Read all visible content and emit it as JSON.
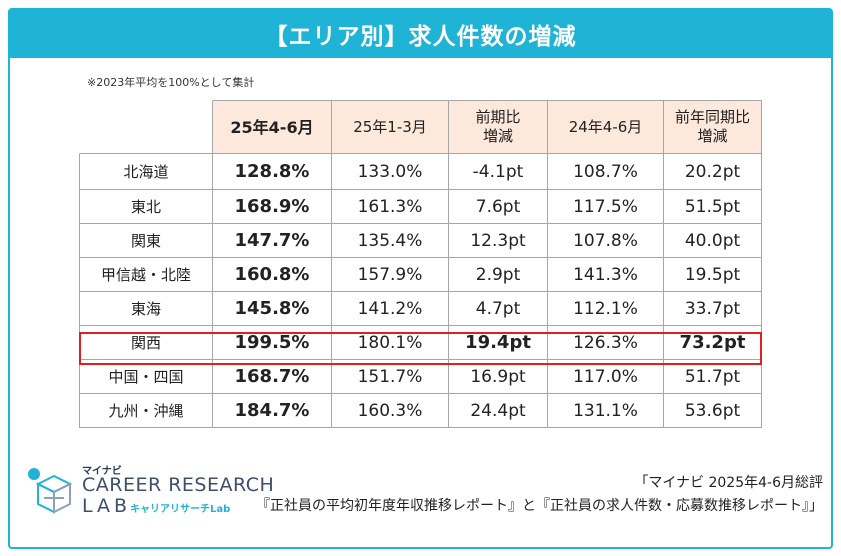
{
  "title": "【エリア別】求人件数の増減",
  "note": "※2023年平均を100%として集計",
  "chart_data": {
    "type": "table",
    "columns": [
      "25年4-6月",
      "25年1-3月",
      "前期比\n増減",
      "24年4-6月",
      "前年同期比\n増減"
    ],
    "rows": [
      {
        "region": "北海道",
        "cells": [
          "128.8%",
          "133.0%",
          "-4.1pt",
          "108.7%",
          "20.2pt"
        ]
      },
      {
        "region": "東北",
        "cells": [
          "168.9%",
          "161.3%",
          "7.6pt",
          "117.5%",
          "51.5pt"
        ]
      },
      {
        "region": "関東",
        "cells": [
          "147.7%",
          "135.4%",
          "12.3pt",
          "107.8%",
          "40.0pt"
        ]
      },
      {
        "region": "甲信越・北陸",
        "cells": [
          "160.8%",
          "157.9%",
          "2.9pt",
          "141.3%",
          "19.5pt"
        ]
      },
      {
        "region": "東海",
        "cells": [
          "145.8%",
          "141.2%",
          "4.7pt",
          "112.1%",
          "33.7pt"
        ]
      },
      {
        "region": "関西",
        "cells": [
          "199.5%",
          "180.1%",
          "19.4pt",
          "126.3%",
          "73.2pt"
        ],
        "highlighted": true
      },
      {
        "region": "中国・四国",
        "cells": [
          "168.7%",
          "151.7%",
          "16.9pt",
          "117.0%",
          "51.7pt"
        ]
      },
      {
        "region": "九州・沖縄",
        "cells": [
          "184.7%",
          "160.3%",
          "24.4pt",
          "131.1%",
          "53.6pt"
        ]
      }
    ]
  },
  "logo": {
    "small": "マイナビ",
    "line1": "CAREER RESEARCH",
    "line2": "LAB",
    "sub": "キャリアリサーチLab",
    "icon": "cube-logo-icon"
  },
  "source": {
    "line1": "「マイナビ 2025年4-6月総評",
    "line2": "『正社員の平均初年度年収推移レポート』と『正社員の求人件数・応募数推移レポート』」"
  },
  "colors": {
    "accent": "#1fb3d6",
    "header_bg": "#fde8dc",
    "highlight": "#e02020"
  }
}
